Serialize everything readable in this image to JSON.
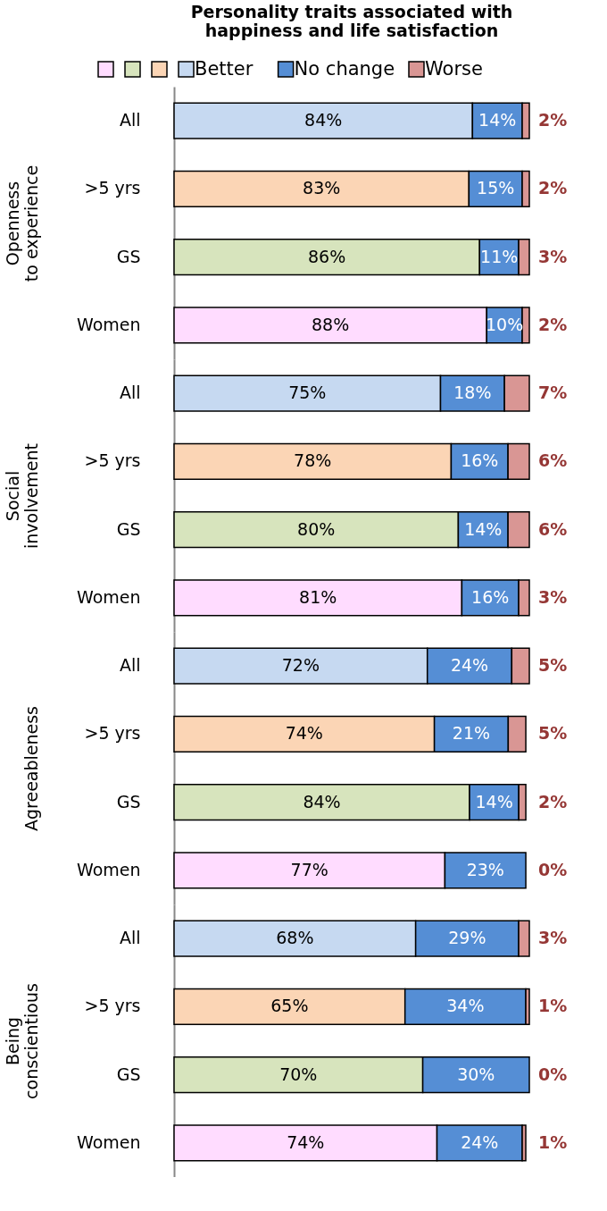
{
  "chart_data": [
    {
      "type": "bar",
      "orientation": "horizontal",
      "stacked": true,
      "title": "Personality traits associated with happiness and life satisfaction",
      "legend": "top",
      "tick_labels": "y",
      "ylabel": "Openness to experience",
      "categories": [
        "All",
        ">5 yrs",
        "GS",
        "Women"
      ],
      "series": [
        {
          "name": "Better",
          "colors": [
            "#c6d9f1",
            "#fbd5b5",
            "#d7e4bd",
            "#ffdcff"
          ],
          "values": [
            84,
            83,
            86,
            88
          ],
          "value_labels": [
            "84%",
            "83%",
            "86%",
            "88%"
          ]
        },
        {
          "name": "No change",
          "color": "#558ed5",
          "values": [
            14,
            15,
            11,
            10
          ],
          "value_labels": [
            "14%",
            "15%",
            "11%",
            "10%"
          ]
        },
        {
          "name": "Worse",
          "color": "#d99694",
          "values": [
            2,
            2,
            3,
            2
          ],
          "value_labels": [
            "2%",
            "2%",
            "3%",
            "2%"
          ]
        }
      ]
    },
    {
      "type": "bar",
      "orientation": "horizontal",
      "stacked": true,
      "tick_labels": "y",
      "ylabel": "Social involvement",
      "categories": [
        "All",
        ">5 yrs",
        "GS",
        "Women"
      ],
      "series": [
        {
          "colors": [
            "#c6d9f1",
            "#fbd5b5",
            "#d7e4bd",
            "#ffdcff"
          ],
          "values": [
            75,
            78,
            80,
            81
          ],
          "value_labels": [
            "75%",
            "78%",
            "80%",
            "81%"
          ]
        },
        {
          "color": "#558ed5",
          "values": [
            18,
            16,
            14,
            16
          ],
          "value_labels": [
            "18%",
            "16%",
            "14%",
            "16%"
          ]
        },
        {
          "color": "#d99694",
          "values": [
            7,
            6,
            6,
            3
          ],
          "value_labels": [
            "7%",
            "6%",
            "6%",
            "3%"
          ]
        }
      ]
    },
    {
      "type": "bar",
      "orientation": "horizontal",
      "stacked": true,
      "tick_labels": "y",
      "ylabel": "Agreeableness",
      "categories": [
        "All",
        ">5 yrs",
        "GS",
        "Women"
      ],
      "series": [
        {
          "colors": [
            "#c6d9f1",
            "#fbd5b5",
            "#d7e4bd",
            "#ffdcff"
          ],
          "values": [
            72,
            74,
            84,
            77
          ],
          "value_labels": [
            "72%",
            "74%",
            "84%",
            "77%"
          ]
        },
        {
          "color": "#558ed5",
          "values": [
            24,
            21,
            14,
            23
          ],
          "value_labels": [
            "24%",
            "21%",
            "14%",
            "23%"
          ]
        },
        {
          "color": "#d99694",
          "values": [
            5,
            5,
            2,
            0
          ],
          "value_labels": [
            "5%",
            "5%",
            "2%",
            "0%"
          ]
        }
      ]
    },
    {
      "type": "bar",
      "orientation": "horizontal",
      "stacked": true,
      "tick_labels": "y",
      "ylabel": "Being conscientious",
      "categories": [
        "All",
        ">5 yrs",
        "GS",
        "Women"
      ],
      "series": [
        {
          "colors": [
            "#c6d9f1",
            "#fbd5b5",
            "#d7e4bd",
            "#ffdcff"
          ],
          "values": [
            68,
            65,
            70,
            74
          ],
          "value_labels": [
            "68%",
            "65%",
            "70%",
            "74%"
          ]
        },
        {
          "color": "#558ed5",
          "values": [
            29,
            34,
            30,
            24
          ],
          "value_labels": [
            "29%",
            "34%",
            "30%",
            "24%"
          ]
        },
        {
          "color": "#d99694",
          "values": [
            3,
            1,
            0,
            1
          ],
          "value_labels": [
            "3%",
            "1%",
            "0%",
            "1%"
          ]
        }
      ]
    }
  ]
}
